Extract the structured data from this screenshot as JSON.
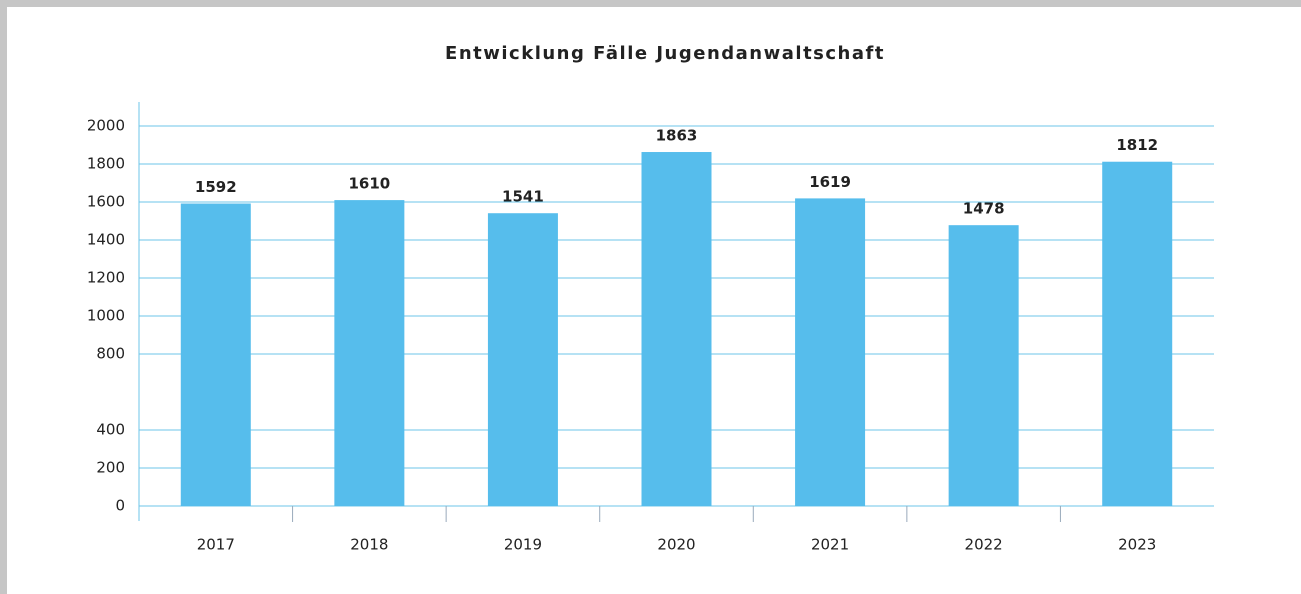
{
  "chart_data": {
    "type": "bar",
    "title": "Entwicklung Fälle Jugendanwaltschaft",
    "categories": [
      "2017",
      "2018",
      "2019",
      "2020",
      "2021",
      "2022",
      "2023"
    ],
    "values": [
      1592,
      1610,
      1541,
      1863,
      1619,
      1478,
      1812
    ],
    "color": "#56bdec",
    "ylim": [
      0,
      2000
    ],
    "yticks": [
      0,
      200,
      400,
      800,
      1000,
      1200,
      1400,
      1600,
      1800,
      2000
    ],
    "grid": true
  }
}
